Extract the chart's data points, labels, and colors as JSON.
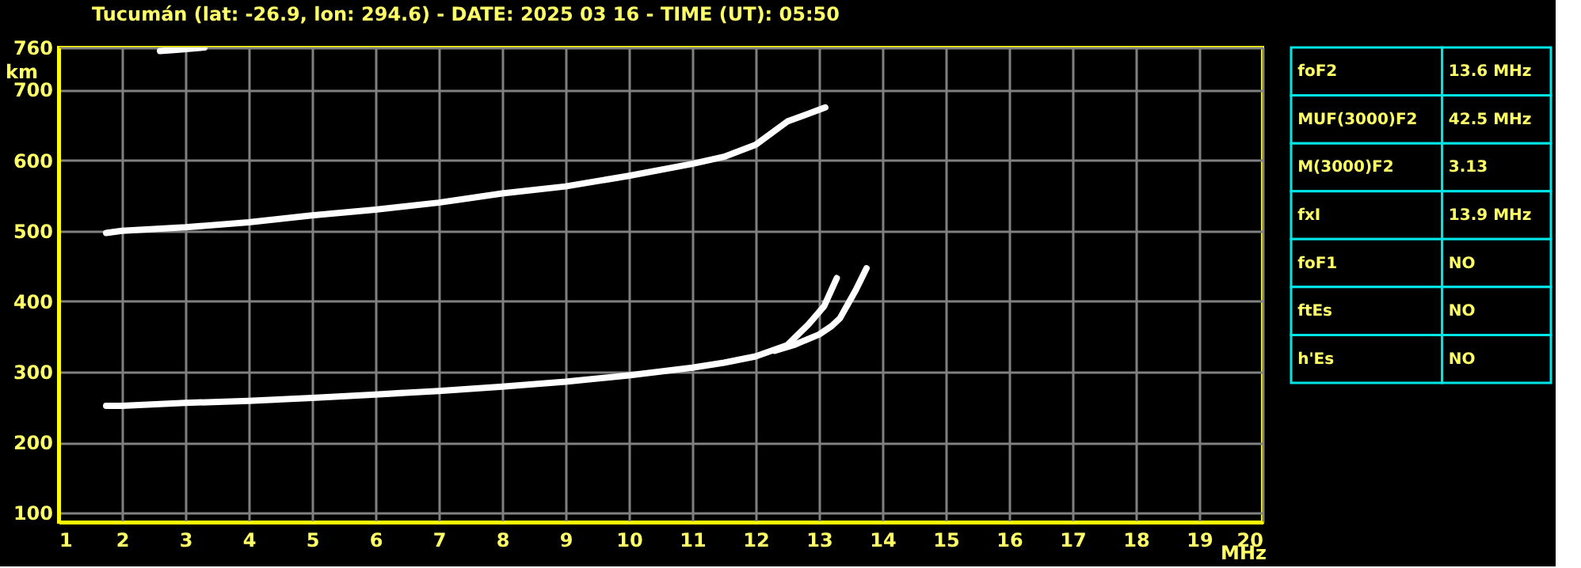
{
  "chart_data": [
    {
      "type": "line",
      "title": "Tucumán (lat: -26.9, lon: 294.6) - DATE: 2025 03 16 - TIME (UT): 05:50",
      "xlabel": "MHz",
      "ylabel": "km",
      "xlim": [
        1,
        20
      ],
      "ylim": [
        87,
        760
      ],
      "xticks": [
        1,
        2,
        3,
        4,
        5,
        6,
        7,
        8,
        9,
        10,
        11,
        12,
        13,
        14,
        15,
        16,
        17,
        18,
        19,
        20
      ],
      "yticks": [
        100,
        200,
        300,
        400,
        500,
        600,
        700,
        760
      ],
      "grid": true,
      "series": [
        {
          "color": "#ffffff",
          "x": [
            1.75,
            2,
            3,
            4,
            5,
            6,
            7,
            8,
            9,
            10,
            11,
            11.5,
            12,
            12.5,
            12.83,
            13.08,
            13.28
          ],
          "values": [
            252,
            252,
            256,
            259,
            263,
            268,
            273,
            279,
            286,
            295,
            306,
            313,
            322,
            338,
            367,
            393,
            433
          ]
        },
        {
          "color": "#ffffff",
          "x": [
            12.3,
            12.6,
            13.0,
            13.2,
            13.33,
            13.58,
            13.75
          ],
          "values": [
            330,
            338,
            353,
            365,
            376,
            416,
            447
          ]
        },
        {
          "color": "#ffffff",
          "x": [
            1.75,
            2,
            3,
            4,
            5,
            6,
            7,
            8,
            9,
            10,
            11,
            11.5,
            12,
            12.5,
            13.1
          ],
          "values": [
            497,
            500,
            505,
            512,
            522,
            530,
            540,
            553,
            563,
            578,
            595,
            605,
            622,
            655,
            675
          ]
        },
        {
          "color": "#ffffff",
          "x": [
            2.6,
            2.9,
            3.3
          ],
          "values": [
            755,
            757,
            760
          ]
        }
      ]
    },
    {
      "type": "other",
      "annotations": [
        "foF2",
        "13.6 MHz",
        "MUF(3000)F2",
        "42.5 MHz",
        "M(3000)F2",
        "3.13",
        "fxI",
        "13.9 MHz",
        "foF1",
        "NO",
        "ftEs",
        "NO",
        "h'Es",
        "NO"
      ]
    }
  ]
}
